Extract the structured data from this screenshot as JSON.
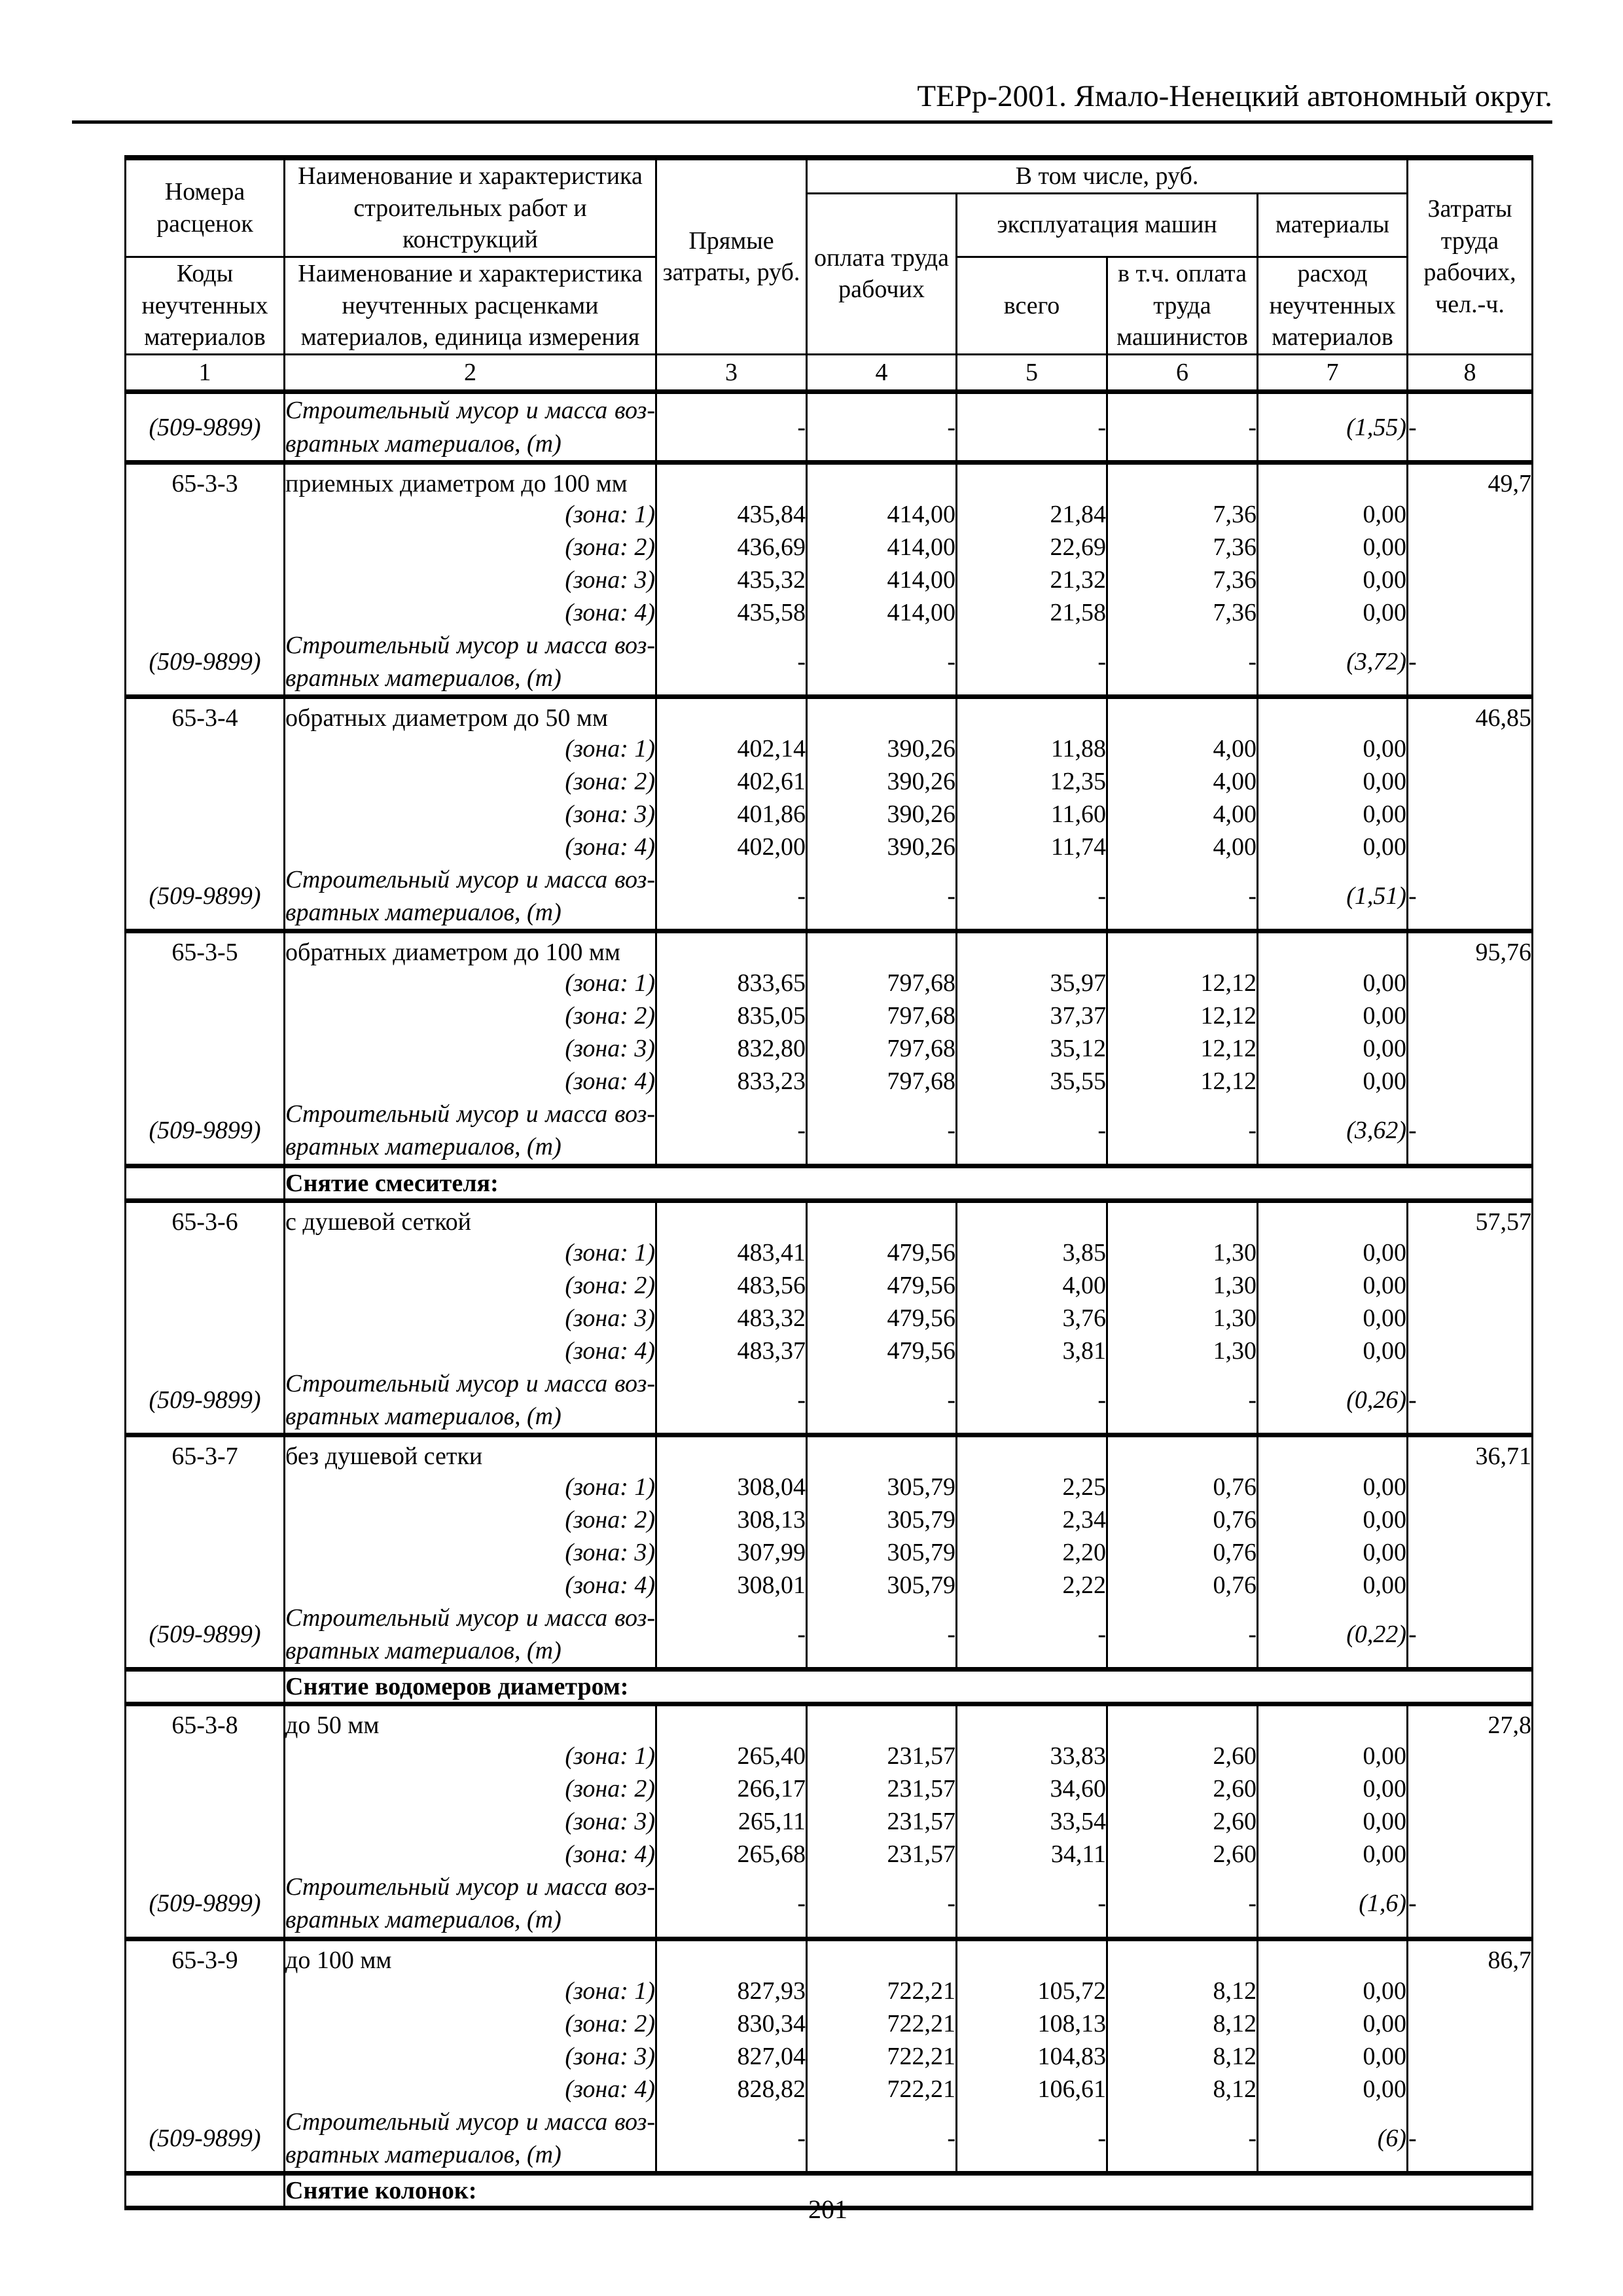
{
  "page": {
    "title": "ТЕРр-2001. Ямало-Ненецкий автономный округ.",
    "page_number": "201"
  },
  "table": {
    "header": {
      "col1_top": "Номера расценок",
      "col1_bottom": "Коды неучтенных материалов",
      "col2_top": "Наименование и характеристика строительных работ и конструкций",
      "col2_bottom": "Наименование и характеристика неучтенных расценками материалов, единица измерения",
      "col3": "Прямые затраты, руб.",
      "including": "В том числе, руб.",
      "col4": "оплата труда рабочих",
      "machines": "эксплуатация машин",
      "materials_group": "материалы",
      "col5": "всего",
      "col6": "в т.ч. оплата труда машинистов",
      "col7": "расход неучтенных материалов",
      "col8": "Затраты труда рабочих, чел.-ч.",
      "numbers": [
        "1",
        "2",
        "3",
        "4",
        "5",
        "6",
        "7",
        "8"
      ]
    },
    "rows": [
      {
        "t": "debris",
        "code": "(509-9899)",
        "text": "Строительный мусор и масса воз-вратных материалов, (т)",
        "dashes": [
          "-",
          "-",
          "-",
          "-"
        ],
        "materials": "(1,55)",
        "tail": "-"
      },
      {
        "t": "name",
        "code": "65-3-3",
        "name": "приемных диаметром до 100 мм",
        "labor": "49,7"
      },
      {
        "t": "zone",
        "label": "(зона: 1)",
        "values": [
          "435,84",
          "414,00",
          "21,84",
          "7,36",
          "0,00"
        ]
      },
      {
        "t": "zone",
        "label": "(зона: 2)",
        "values": [
          "436,69",
          "414,00",
          "22,69",
          "7,36",
          "0,00"
        ]
      },
      {
        "t": "zone",
        "label": "(зона: 3)",
        "values": [
          "435,32",
          "414,00",
          "21,32",
          "7,36",
          "0,00"
        ]
      },
      {
        "t": "zone",
        "label": "(зона: 4)",
        "values": [
          "435,58",
          "414,00",
          "21,58",
          "7,36",
          "0,00"
        ]
      },
      {
        "t": "debris",
        "code": "(509-9899)",
        "text": "Строительный мусор и масса воз-вратных материалов, (т)",
        "dashes": [
          "-",
          "-",
          "-",
          "-"
        ],
        "materials": "(3,72)",
        "tail": "-"
      },
      {
        "t": "name",
        "code": "65-3-4",
        "name": "обратных диаметром до 50 мм",
        "labor": "46,85"
      },
      {
        "t": "zone",
        "label": "(зона: 1)",
        "values": [
          "402,14",
          "390,26",
          "11,88",
          "4,00",
          "0,00"
        ]
      },
      {
        "t": "zone",
        "label": "(зона: 2)",
        "values": [
          "402,61",
          "390,26",
          "12,35",
          "4,00",
          "0,00"
        ]
      },
      {
        "t": "zone",
        "label": "(зона: 3)",
        "values": [
          "401,86",
          "390,26",
          "11,60",
          "4,00",
          "0,00"
        ]
      },
      {
        "t": "zone",
        "label": "(зона: 4)",
        "values": [
          "402,00",
          "390,26",
          "11,74",
          "4,00",
          "0,00"
        ]
      },
      {
        "t": "debris",
        "code": "(509-9899)",
        "text": "Строительный мусор и масса воз-вратных материалов, (т)",
        "dashes": [
          "-",
          "-",
          "-",
          "-"
        ],
        "materials": "(1,51)",
        "tail": "-"
      },
      {
        "t": "name",
        "code": "65-3-5",
        "name": "обратных диаметром до 100 мм",
        "labor": "95,76"
      },
      {
        "t": "zone",
        "label": "(зона: 1)",
        "values": [
          "833,65",
          "797,68",
          "35,97",
          "12,12",
          "0,00"
        ]
      },
      {
        "t": "zone",
        "label": "(зона: 2)",
        "values": [
          "835,05",
          "797,68",
          "37,37",
          "12,12",
          "0,00"
        ]
      },
      {
        "t": "zone",
        "label": "(зона: 3)",
        "values": [
          "832,80",
          "797,68",
          "35,12",
          "12,12",
          "0,00"
        ]
      },
      {
        "t": "zone",
        "label": "(зона: 4)",
        "values": [
          "833,23",
          "797,68",
          "35,55",
          "12,12",
          "0,00"
        ]
      },
      {
        "t": "debris",
        "code": "(509-9899)",
        "text": "Строительный мусор и масса воз-вратных материалов, (т)",
        "dashes": [
          "-",
          "-",
          "-",
          "-"
        ],
        "materials": "(3,62)",
        "tail": "-"
      },
      {
        "t": "section",
        "title": "Снятие смесителя:"
      },
      {
        "t": "name",
        "code": "65-3-6",
        "name": "с душевой сеткой",
        "labor": "57,57"
      },
      {
        "t": "zone",
        "label": "(зона: 1)",
        "values": [
          "483,41",
          "479,56",
          "3,85",
          "1,30",
          "0,00"
        ]
      },
      {
        "t": "zone",
        "label": "(зона: 2)",
        "values": [
          "483,56",
          "479,56",
          "4,00",
          "1,30",
          "0,00"
        ]
      },
      {
        "t": "zone",
        "label": "(зона: 3)",
        "values": [
          "483,32",
          "479,56",
          "3,76",
          "1,30",
          "0,00"
        ]
      },
      {
        "t": "zone",
        "label": "(зона: 4)",
        "values": [
          "483,37",
          "479,56",
          "3,81",
          "1,30",
          "0,00"
        ]
      },
      {
        "t": "debris",
        "code": "(509-9899)",
        "text": "Строительный мусор и масса воз-вратных материалов, (т)",
        "dashes": [
          "-",
          "-",
          "-",
          "-"
        ],
        "materials": "(0,26)",
        "tail": "-"
      },
      {
        "t": "name",
        "code": "65-3-7",
        "name": "без душевой сетки",
        "labor": "36,71"
      },
      {
        "t": "zone",
        "label": "(зона: 1)",
        "values": [
          "308,04",
          "305,79",
          "2,25",
          "0,76",
          "0,00"
        ]
      },
      {
        "t": "zone",
        "label": "(зона: 2)",
        "values": [
          "308,13",
          "305,79",
          "2,34",
          "0,76",
          "0,00"
        ]
      },
      {
        "t": "zone",
        "label": "(зона: 3)",
        "values": [
          "307,99",
          "305,79",
          "2,20",
          "0,76",
          "0,00"
        ]
      },
      {
        "t": "zone",
        "label": "(зона: 4)",
        "values": [
          "308,01",
          "305,79",
          "2,22",
          "0,76",
          "0,00"
        ]
      },
      {
        "t": "debris",
        "code": "(509-9899)",
        "text": "Строительный мусор и масса воз-вратных материалов, (т)",
        "dashes": [
          "-",
          "-",
          "-",
          "-"
        ],
        "materials": "(0,22)",
        "tail": "-"
      },
      {
        "t": "section",
        "title": "Снятие водомеров диаметром:"
      },
      {
        "t": "name",
        "code": "65-3-8",
        "name": "до 50 мм",
        "labor": "27,8"
      },
      {
        "t": "zone",
        "label": "(зона: 1)",
        "values": [
          "265,40",
          "231,57",
          "33,83",
          "2,60",
          "0,00"
        ]
      },
      {
        "t": "zone",
        "label": "(зона: 2)",
        "values": [
          "266,17",
          "231,57",
          "34,60",
          "2,60",
          "0,00"
        ]
      },
      {
        "t": "zone",
        "label": "(зона: 3)",
        "values": [
          "265,11",
          "231,57",
          "33,54",
          "2,60",
          "0,00"
        ]
      },
      {
        "t": "zone",
        "label": "(зона: 4)",
        "values": [
          "265,68",
          "231,57",
          "34,11",
          "2,60",
          "0,00"
        ]
      },
      {
        "t": "debris",
        "code": "(509-9899)",
        "text": "Строительный мусор и масса воз-вратных материалов, (т)",
        "dashes": [
          "-",
          "-",
          "-",
          "-"
        ],
        "materials": "(1,6)",
        "tail": "-"
      },
      {
        "t": "name",
        "code": "65-3-9",
        "name": "до 100 мм",
        "labor": "86,7"
      },
      {
        "t": "zone",
        "label": "(зона: 1)",
        "values": [
          "827,93",
          "722,21",
          "105,72",
          "8,12",
          "0,00"
        ]
      },
      {
        "t": "zone",
        "label": "(зона: 2)",
        "values": [
          "830,34",
          "722,21",
          "108,13",
          "8,12",
          "0,00"
        ]
      },
      {
        "t": "zone",
        "label": "(зона: 3)",
        "values": [
          "827,04",
          "722,21",
          "104,83",
          "8,12",
          "0,00"
        ]
      },
      {
        "t": "zone",
        "label": "(зона: 4)",
        "values": [
          "828,82",
          "722,21",
          "106,61",
          "8,12",
          "0,00"
        ]
      },
      {
        "t": "debris",
        "code": "(509-9899)",
        "text": "Строительный мусор и масса воз-вратных материалов, (т)",
        "dashes": [
          "-",
          "-",
          "-",
          "-"
        ],
        "materials": "(6)",
        "tail": "-"
      },
      {
        "t": "section",
        "title": "Снятие колонок:"
      }
    ]
  }
}
